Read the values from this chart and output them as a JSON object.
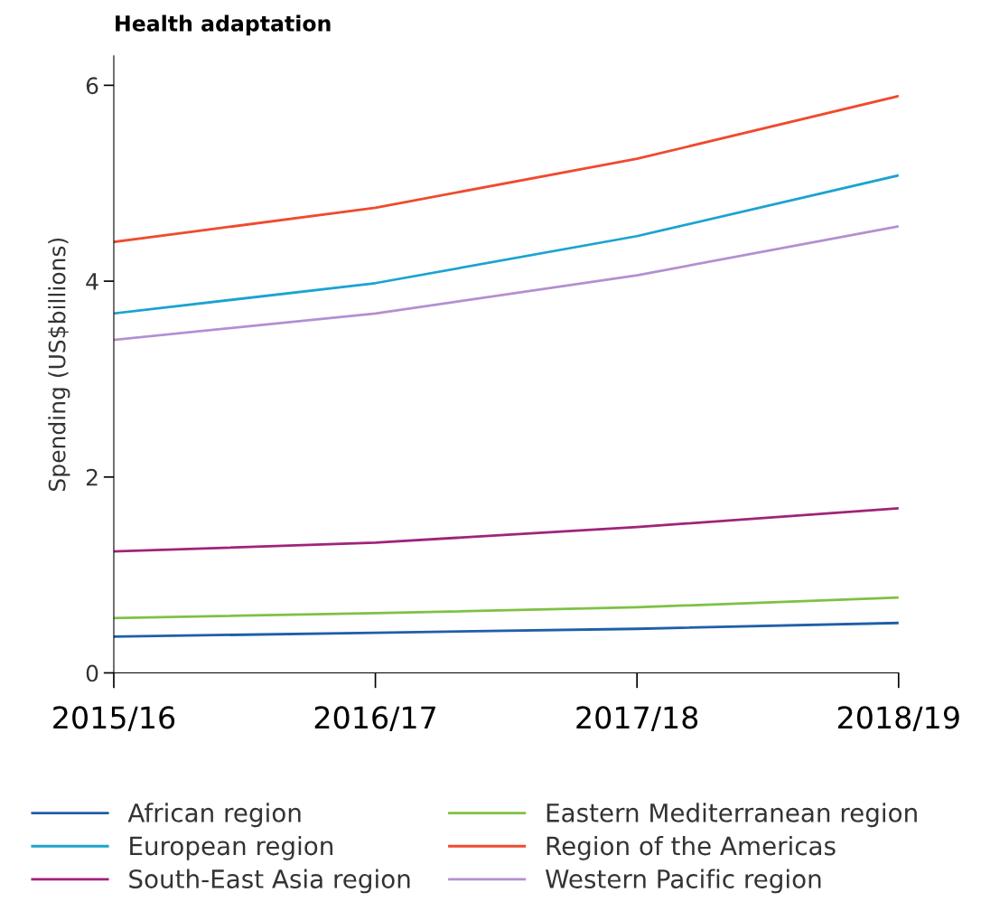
{
  "chart_data": {
    "type": "line",
    "title": "Health adaptation",
    "ylabel": "Spending (US$billions)",
    "categories": [
      "2015/16",
      "2016/17",
      "2017/18",
      "2018/19"
    ],
    "series": [
      {
        "name": "African region",
        "color": "#1f5fa8",
        "values": [
          0.37,
          0.41,
          0.45,
          0.51
        ]
      },
      {
        "name": "Eastern Mediterranean region",
        "color": "#7dc242",
        "values": [
          0.56,
          0.61,
          0.67,
          0.77
        ]
      },
      {
        "name": "European region",
        "color": "#1ba3d1",
        "values": [
          3.67,
          3.98,
          4.46,
          5.08
        ]
      },
      {
        "name": "Region of the Americas",
        "color": "#f04a2e",
        "values": [
          4.4,
          4.75,
          5.25,
          5.89
        ]
      },
      {
        "name": "South-East Asia region",
        "color": "#a0237a",
        "values": [
          1.24,
          1.33,
          1.49,
          1.68
        ]
      },
      {
        "name": "Western Pacific region",
        "color": "#b48fd0",
        "values": [
          3.4,
          3.67,
          4.06,
          4.56
        ]
      }
    ],
    "ylim": [
      0,
      6.3
    ],
    "yticks": [
      0,
      2,
      4,
      6
    ],
    "grid": false,
    "legend": "bottom",
    "marker": "none",
    "line_style": "solid"
  }
}
